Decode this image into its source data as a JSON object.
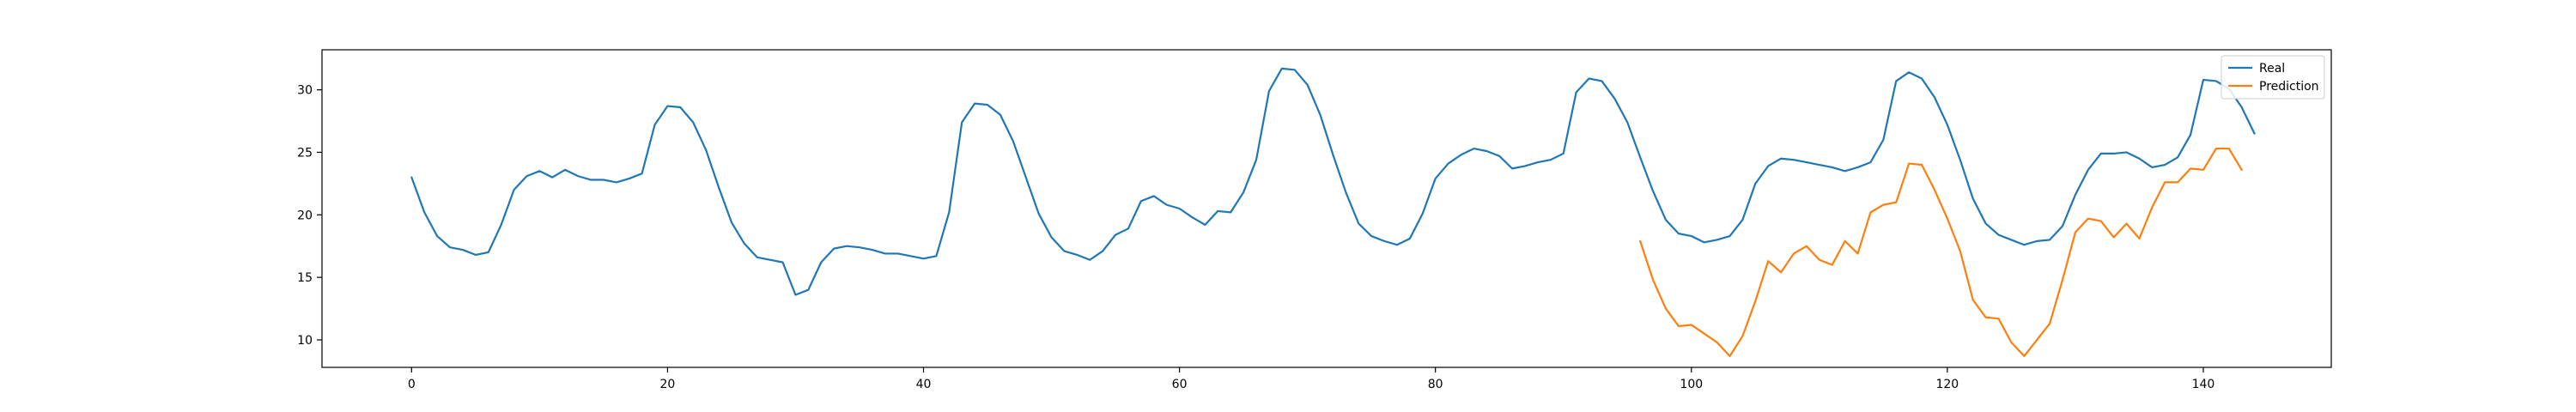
{
  "chart_data": {
    "type": "line",
    "xlim": [
      -7,
      150
    ],
    "ylim": [
      7.8,
      33.2
    ],
    "xticks": [
      0,
      20,
      40,
      60,
      80,
      100,
      120,
      140
    ],
    "yticks": [
      10,
      15,
      20,
      25,
      30
    ],
    "grid": false,
    "legend_position": "top-right",
    "series": [
      {
        "name": "Real",
        "color": "#1f77b4",
        "x_start": 0,
        "values": [
          23.0,
          20.2,
          18.3,
          17.4,
          17.2,
          16.8,
          17.0,
          19.2,
          22.0,
          23.1,
          23.5,
          23.0,
          23.6,
          23.1,
          22.8,
          22.8,
          22.6,
          22.9,
          23.3,
          27.2,
          28.7,
          28.6,
          27.4,
          25.2,
          22.2,
          19.4,
          17.7,
          16.6,
          16.4,
          16.2,
          13.6,
          14.0,
          16.2,
          17.3,
          17.5,
          17.4,
          17.2,
          16.9,
          16.9,
          16.7,
          16.5,
          16.7,
          20.2,
          27.4,
          28.9,
          28.8,
          28.0,
          25.9,
          23.0,
          20.1,
          18.2,
          17.1,
          16.8,
          16.4,
          17.1,
          18.4,
          18.9,
          21.1,
          21.5,
          20.8,
          20.5,
          19.8,
          19.2,
          20.3,
          20.2,
          21.8,
          24.4,
          29.9,
          31.7,
          31.6,
          30.4,
          28.0,
          24.8,
          21.8,
          19.3,
          18.3,
          17.9,
          17.6,
          18.1,
          20.1,
          22.9,
          24.1,
          24.8,
          25.3,
          25.1,
          24.7,
          23.7,
          23.9,
          24.2,
          24.4,
          24.9,
          29.8,
          30.9,
          30.7,
          29.3,
          27.4,
          24.6,
          21.9,
          19.6,
          18.5,
          18.3,
          17.8,
          18.0,
          18.3,
          19.6,
          22.5,
          23.9,
          24.5,
          24.4,
          24.2,
          24.0,
          23.8,
          23.5,
          23.8,
          24.2,
          26.0,
          30.7,
          31.4,
          30.9,
          29.4,
          27.2,
          24.4,
          21.3,
          19.3,
          18.4,
          18.0,
          17.6,
          17.9,
          18.0,
          19.1,
          21.6,
          23.6,
          24.9,
          24.9,
          25.0,
          24.5,
          23.8,
          24.0,
          24.6,
          26.4,
          30.8,
          30.7,
          30.1,
          28.6,
          26.5
        ]
      },
      {
        "name": "Prediction",
        "color": "#ff7f0e",
        "x_start": 96,
        "values": [
          17.9,
          14.8,
          12.5,
          11.1,
          11.2,
          10.5,
          9.8,
          8.7,
          10.3,
          13.1,
          16.3,
          15.4,
          16.9,
          17.5,
          16.4,
          16.0,
          17.9,
          16.9,
          20.2,
          20.8,
          21.0,
          24.1,
          24.0,
          22.0,
          19.7,
          17.1,
          13.2,
          11.8,
          11.7,
          9.8,
          8.7,
          10.0,
          11.3,
          14.8,
          18.6,
          19.7,
          19.5,
          18.2,
          19.3,
          18.1,
          20.6,
          22.6,
          22.6,
          23.7,
          23.6,
          25.3,
          25.3,
          23.6
        ]
      }
    ]
  }
}
